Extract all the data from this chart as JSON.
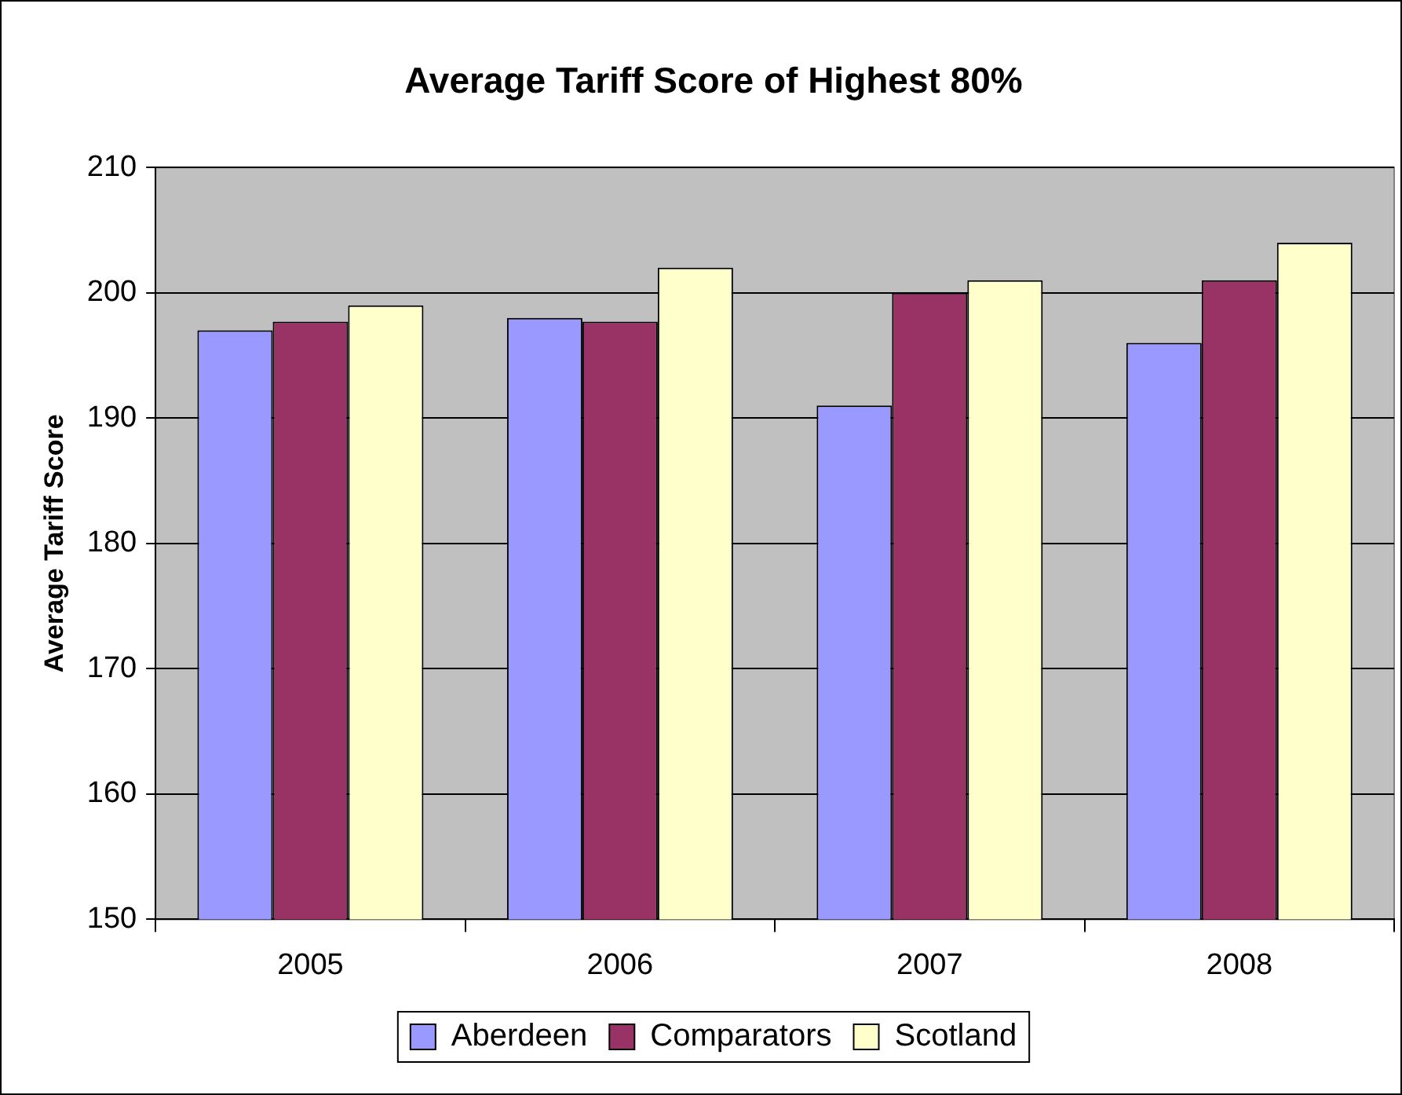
{
  "chart_data": {
    "type": "bar",
    "title": "Average Tariff Score of Highest 80%",
    "ylabel": "Average Tariff Score",
    "categories": [
      "2005",
      "2006",
      "2007",
      "2008"
    ],
    "series": [
      {
        "name": "Aberdeen",
        "color": "#9999ff",
        "values": [
          197,
          198,
          191,
          196
        ]
      },
      {
        "name": "Comparators",
        "color": "#993366",
        "values": [
          197.7,
          197.7,
          200,
          201
        ]
      },
      {
        "name": "Scotland",
        "color": "#ffffcc",
        "values": [
          199,
          202,
          201,
          204
        ]
      }
    ],
    "ylim": [
      150,
      210
    ],
    "yticks": [
      150,
      160,
      170,
      180,
      190,
      200,
      210
    ],
    "grid": "y",
    "legend": "bottom"
  }
}
